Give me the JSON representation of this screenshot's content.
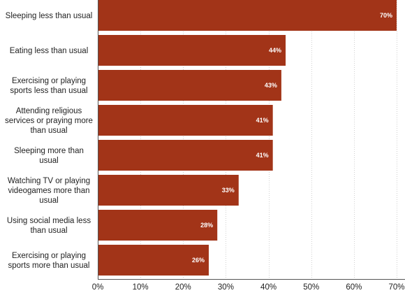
{
  "chart_data": {
    "type": "bar",
    "orientation": "horizontal",
    "categories": [
      [
        "Sleeping less than usual"
      ],
      [
        "Eating less than usual"
      ],
      [
        "Exercising or playing",
        "sports less than usual"
      ],
      [
        "Attending religious",
        "services or praying more",
        "than usual"
      ],
      [
        "Sleeping more than",
        "usual"
      ],
      [
        "Watching TV or playing",
        "videogames more than",
        "usual"
      ],
      [
        "Using social media less",
        "than usual"
      ],
      [
        "Exercising or playing",
        "sports more than usual"
      ]
    ],
    "values": [
      70,
      44,
      43,
      41,
      41,
      33,
      28,
      26
    ],
    "data_labels": [
      "70%",
      "44%",
      "43%",
      "41%",
      "41%",
      "33%",
      "28%",
      "26%"
    ],
    "xlim": [
      0,
      70
    ],
    "x_ticks": [
      0,
      10,
      20,
      30,
      40,
      50,
      60,
      70
    ],
    "x_tick_labels": [
      "0%",
      "10%",
      "20%",
      "30%",
      "40%",
      "50%",
      "60%",
      "70%"
    ],
    "grid": true,
    "colors": {
      "bar": "#a23418"
    }
  }
}
